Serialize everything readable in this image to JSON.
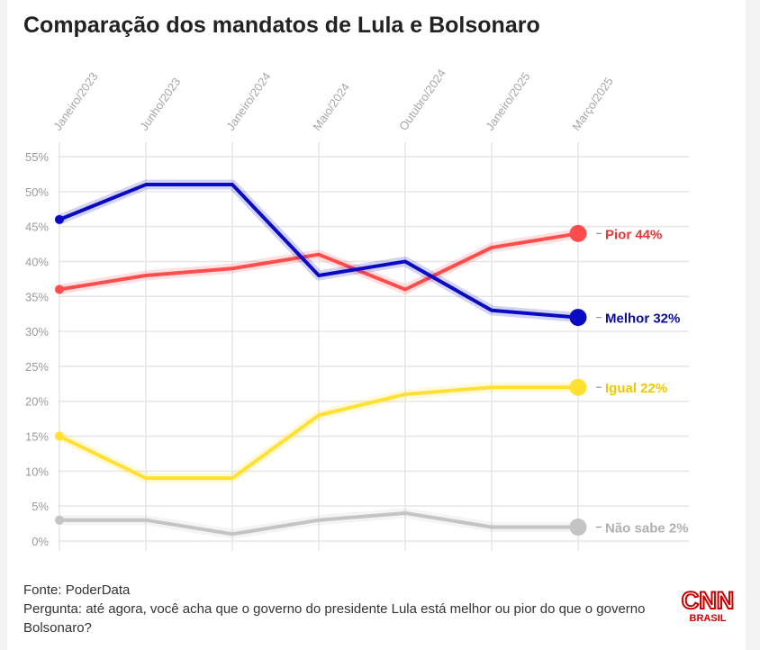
{
  "title": "Comparação dos mandatos de Lula e Bolsonaro",
  "chart_data": {
    "type": "line",
    "categories": [
      "Janeiro/2023",
      "Junho/2023",
      "Janeiro/2024",
      "Maio/2024",
      "Outubro/2024",
      "Janeiro/2025",
      "Março/2025"
    ],
    "x_points": 7,
    "ylim": [
      0,
      55
    ],
    "yticks": [
      "0%",
      "5%",
      "10%",
      "15%",
      "20%",
      "25%",
      "30%",
      "35%",
      "40%",
      "45%",
      "50%",
      "55%"
    ],
    "grid": true,
    "series": [
      {
        "name": "Pior",
        "label": "Pior 44%",
        "color": "#ff4d4d",
        "values": [
          36,
          38,
          39,
          41,
          36,
          42,
          44
        ]
      },
      {
        "name": "Melhor",
        "label": "Melhor 32%",
        "color": "#0a0ac2",
        "values": [
          46,
          51,
          51,
          38,
          40,
          33,
          32
        ]
      },
      {
        "name": "Igual",
        "label": "Igual 22%",
        "color": "#ffe033",
        "values": [
          15,
          9,
          9,
          18,
          21,
          22,
          22
        ]
      },
      {
        "name": "Não sabe",
        "label": "Não sabe 2%",
        "color": "#c4c4c4",
        "values": [
          3,
          3,
          1,
          3,
          4,
          2,
          2
        ]
      }
    ],
    "label_colors": {
      "Pior": "#e83535",
      "Melhor": "#0a0a9e",
      "Igual": "#f0c800",
      "Não sabe": "#b0b0b0"
    }
  },
  "footer": {
    "source": "Fonte: PoderData",
    "question": "Pergunta: até agora, você acha que o governo do presidente Lula está melhor ou pior do que o governo Bolsonaro?"
  },
  "brand": {
    "name": "CNN",
    "sub": "BRASIL",
    "color": "#cc0000"
  }
}
